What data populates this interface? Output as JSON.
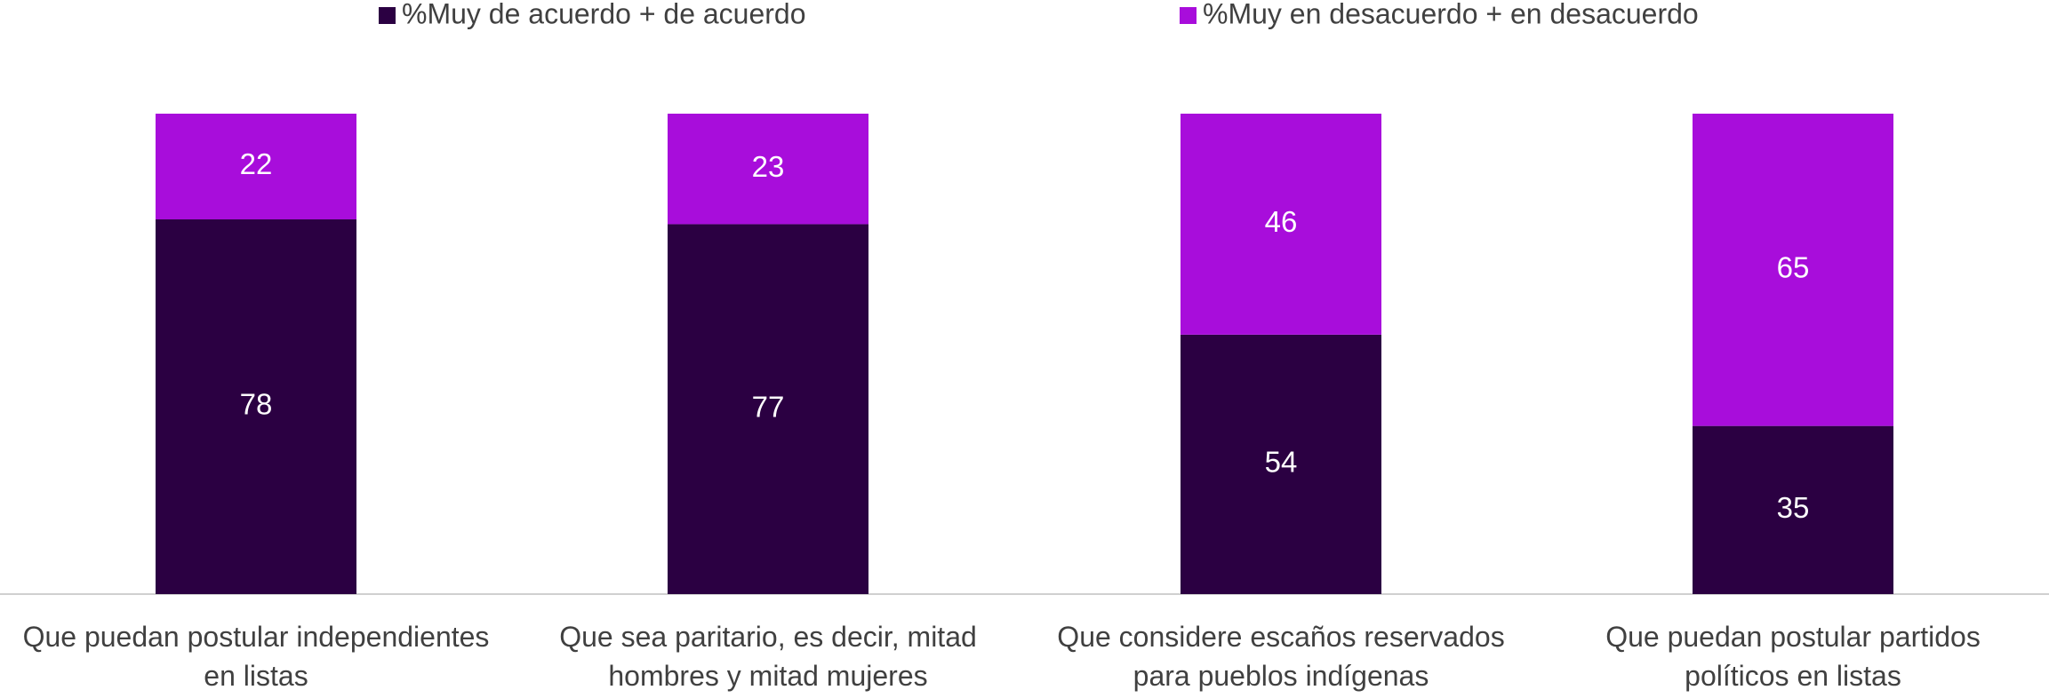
{
  "chart_data": {
    "type": "stacked_bar",
    "categories": [
      "Que puedan postular independientes\nen listas",
      "Que sea paritario, es decir, mitad\nhombres y mitad mujeres",
      "Que considere escaños reservados\npara pueblos indígenas",
      "Que puedan postular partidos\npolíticos en listas"
    ],
    "series": [
      {
        "name": "%Muy de acuerdo + de acuerdo",
        "color": "#2b0042",
        "values": [
          78,
          77,
          54,
          35
        ]
      },
      {
        "name": "%Muy en desacuerdo + en desacuerdo",
        "color": "#a80ddb",
        "values": [
          22,
          23,
          46,
          65
        ]
      }
    ]
  }
}
